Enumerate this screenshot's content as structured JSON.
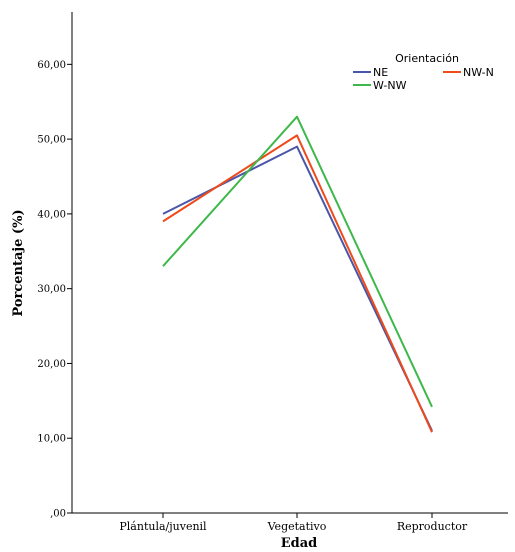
{
  "chart_data": {
    "type": "line",
    "title": "",
    "xlabel": "Edad",
    "ylabel": "Porcentaje (%)",
    "categories": [
      "Plántula/juvenil",
      "Vegetativo",
      "Reproductor"
    ],
    "ylim": [
      0,
      67
    ],
    "yticks": [
      0,
      10,
      20,
      30,
      40,
      50,
      60
    ],
    "ytick_labels": [
      ",00",
      "10,00",
      "20,00",
      "30,00",
      "40,00",
      "50,00",
      "60,00"
    ],
    "grid": false,
    "legend": {
      "title": "Orientación",
      "position": "top-right"
    },
    "series": [
      {
        "name": "NE",
        "color": "#4a56a8",
        "values": [
          40.0,
          49.0,
          11.0
        ]
      },
      {
        "name": "NW-N",
        "color": "#ee4a1c",
        "values": [
          39.0,
          50.5,
          10.8
        ]
      },
      {
        "name": "W-NW",
        "color": "#3eb84a",
        "values": [
          33.0,
          53.0,
          14.2
        ]
      }
    ]
  }
}
